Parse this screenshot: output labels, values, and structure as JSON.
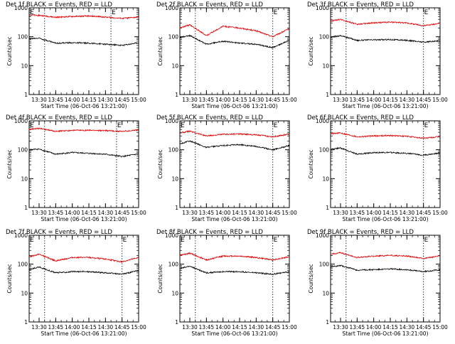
{
  "figure": {
    "colors": {
      "events": "#000000",
      "lld": "#dd0000",
      "axes": "#000000"
    },
    "marker_label": "E",
    "ylabel": "Counts/sec",
    "xlabel": "Start Time (06-Oct-06 13:21:00)"
  },
  "chart_data": [
    {
      "type": "line",
      "title": "Det 1f BLACK = Events, RED = LLD",
      "xlabel": "Start Time (06-Oct-06 13:21:00)",
      "ylabel": "Counts/sec",
      "yscale": "log",
      "ylim": [
        1,
        1000
      ],
      "xlim": [
        "13:21",
        "15:00"
      ],
      "x_ticks": [
        "13:30",
        "13:45",
        "14:00",
        "14:15",
        "14:30",
        "14:45",
        "15:00"
      ],
      "y_ticks": [
        "1",
        "10",
        "100",
        "1000"
      ],
      "marker_times": [
        "13:21",
        "14:35"
      ],
      "dotted_lines": [
        "13:35",
        "14:35"
      ],
      "series": [
        {
          "name": "Events",
          "color": "#000000",
          "x": [
            "13:21",
            "13:30",
            "13:45",
            "14:00",
            "14:15",
            "14:30",
            "14:45",
            "15:00"
          ],
          "values": [
            85,
            90,
            60,
            62,
            60,
            55,
            50,
            62
          ]
        },
        {
          "name": "LLD",
          "color": "#dd0000",
          "x": [
            "13:21",
            "13:30",
            "13:45",
            "14:00",
            "14:15",
            "14:30",
            "14:45",
            "15:00"
          ],
          "values": [
            560,
            550,
            470,
            500,
            520,
            480,
            430,
            480
          ]
        }
      ]
    },
    {
      "type": "line",
      "title": "Det 2f BLACK = Events, RED = LLD",
      "xlabel": "Start Time (06-Oct-06 13:21:00)",
      "ylabel": "Counts/sec",
      "yscale": "log",
      "ylim": [
        1,
        1000
      ],
      "xlim": [
        "13:21",
        "15:00"
      ],
      "x_ticks": [
        "13:30",
        "13:45",
        "14:00",
        "14:15",
        "14:30",
        "14:45",
        "15:00"
      ],
      "y_ticks": [
        "1",
        "10",
        "100",
        "1000"
      ],
      "marker_times": [
        "14:45"
      ],
      "dotted_lines": [
        "13:35",
        "14:45"
      ],
      "series": [
        {
          "name": "Events",
          "color": "#000000",
          "x": [
            "13:21",
            "13:30",
            "13:45",
            "14:00",
            "14:15",
            "14:30",
            "14:45",
            "15:00"
          ],
          "values": [
            95,
            110,
            55,
            70,
            60,
            55,
            42,
            75
          ]
        },
        {
          "name": "LLD",
          "color": "#dd0000",
          "x": [
            "13:21",
            "13:30",
            "13:45",
            "14:00",
            "14:15",
            "14:30",
            "14:45",
            "15:00"
          ],
          "values": [
            200,
            260,
            110,
            230,
            200,
            160,
            100,
            190
          ]
        }
      ]
    },
    {
      "type": "line",
      "title": "Det 3f BLACK = Events, RED = LLD",
      "xlabel": "Start Time (06-Oct-06 13:21:00)",
      "ylabel": "Counts/sec",
      "yscale": "log",
      "ylim": [
        1,
        1000
      ],
      "xlim": [
        "13:21",
        "15:00"
      ],
      "x_ticks": [
        "13:30",
        "13:45",
        "14:00",
        "14:15",
        "14:30",
        "14:45",
        "15:00"
      ],
      "y_ticks": [
        "1",
        "10",
        "100",
        "1000"
      ],
      "marker_times": [
        "14:45"
      ],
      "dotted_lines": [
        "13:35",
        "14:45"
      ],
      "series": [
        {
          "name": "Events",
          "color": "#000000",
          "x": [
            "13:21",
            "13:30",
            "13:45",
            "14:00",
            "14:15",
            "14:30",
            "14:45",
            "15:00"
          ],
          "values": [
            95,
            110,
            75,
            78,
            80,
            75,
            65,
            72
          ]
        },
        {
          "name": "LLD",
          "color": "#dd0000",
          "x": [
            "13:21",
            "13:30",
            "13:45",
            "14:00",
            "14:15",
            "14:30",
            "14:45",
            "15:00"
          ],
          "values": [
            350,
            400,
            270,
            300,
            320,
            300,
            240,
            290
          ]
        }
      ]
    },
    {
      "type": "line",
      "title": "Det 4f BLACK = Events, RED = LLD",
      "xlabel": "Start Time (06-Oct-06 13:21:00)",
      "ylabel": "Counts/sec",
      "yscale": "log",
      "ylim": [
        1,
        1000
      ],
      "xlim": [
        "13:21",
        "15:00"
      ],
      "x_ticks": [
        "13:30",
        "13:45",
        "14:00",
        "14:15",
        "14:30",
        "14:45",
        "15:00"
      ],
      "y_ticks": [
        "1",
        "10",
        "100",
        "1000"
      ],
      "marker_times": [
        "13:21",
        "14:40"
      ],
      "dotted_lines": [
        "13:35",
        "14:40"
      ],
      "series": [
        {
          "name": "Events",
          "color": "#000000",
          "x": [
            "13:21",
            "13:30",
            "13:45",
            "14:00",
            "14:15",
            "14:30",
            "14:45",
            "15:00"
          ],
          "values": [
            100,
            105,
            70,
            80,
            75,
            70,
            58,
            72
          ]
        },
        {
          "name": "LLD",
          "color": "#dd0000",
          "x": [
            "13:21",
            "13:30",
            "13:45",
            "14:00",
            "14:15",
            "14:30",
            "14:45",
            "15:00"
          ],
          "values": [
            500,
            550,
            430,
            470,
            470,
            460,
            430,
            480
          ]
        }
      ]
    },
    {
      "type": "line",
      "title": "Det 5f BLACK = Events, RED = LLD",
      "xlabel": "Start Time (06-Oct-06 13:21:00)",
      "ylabel": "Counts/sec",
      "yscale": "log",
      "ylim": [
        1,
        1000
      ],
      "xlim": [
        "13:21",
        "15:00"
      ],
      "x_ticks": [
        "13:30",
        "13:45",
        "14:00",
        "14:15",
        "14:30",
        "14:45",
        "15:00"
      ],
      "y_ticks": [
        "1",
        "10",
        "100",
        "1000"
      ],
      "marker_times": [
        "13:21",
        "14:45"
      ],
      "dotted_lines": [
        "13:35",
        "14:45"
      ],
      "series": [
        {
          "name": "Events",
          "color": "#000000",
          "x": [
            "13:21",
            "13:30",
            "13:45",
            "14:00",
            "14:15",
            "14:30",
            "14:45",
            "15:00"
          ],
          "values": [
            160,
            200,
            120,
            140,
            150,
            130,
            100,
            140
          ]
        },
        {
          "name": "LLD",
          "color": "#dd0000",
          "x": [
            "13:21",
            "13:30",
            "13:45",
            "14:00",
            "14:15",
            "14:30",
            "14:45",
            "15:00"
          ],
          "values": [
            380,
            440,
            300,
            340,
            350,
            330,
            280,
            350
          ]
        }
      ]
    },
    {
      "type": "line",
      "title": "Det 6f BLACK = Events, RED = LLD",
      "xlabel": "Start Time (06-Oct-06 13:21:00)",
      "ylabel": "Counts/sec",
      "yscale": "log",
      "ylim": [
        1,
        1000
      ],
      "xlim": [
        "13:21",
        "15:00"
      ],
      "x_ticks": [
        "13:30",
        "13:45",
        "14:00",
        "14:15",
        "14:30",
        "14:45",
        "15:00"
      ],
      "y_ticks": [
        "1",
        "10",
        "100",
        "1000"
      ],
      "marker_times": [
        "14:45"
      ],
      "dotted_lines": [
        "13:35",
        "14:45"
      ],
      "series": [
        {
          "name": "Events",
          "color": "#000000",
          "x": [
            "13:21",
            "13:30",
            "13:45",
            "14:00",
            "14:15",
            "14:30",
            "14:45",
            "15:00"
          ],
          "values": [
            105,
            115,
            70,
            80,
            80,
            75,
            65,
            78
          ]
        },
        {
          "name": "LLD",
          "color": "#dd0000",
          "x": [
            "13:21",
            "13:30",
            "13:45",
            "14:00",
            "14:15",
            "14:30",
            "14:45",
            "15:00"
          ],
          "values": [
            360,
            380,
            280,
            300,
            310,
            290,
            250,
            280
          ]
        }
      ]
    },
    {
      "type": "line",
      "title": "Det 7f BLACK = Events, RED = LLD",
      "xlabel": "Start Time (06-Oct-06 13:21:00)",
      "ylabel": "Counts/sec",
      "yscale": "log",
      "ylim": [
        1,
        1000
      ],
      "xlim": [
        "13:21",
        "15:00"
      ],
      "x_ticks": [
        "13:30",
        "13:45",
        "14:00",
        "14:15",
        "14:30",
        "14:45",
        "15:00"
      ],
      "y_ticks": [
        "1",
        "10",
        "100",
        "1000"
      ],
      "marker_times": [
        "13:21",
        "14:45"
      ],
      "dotted_lines": [
        "13:35",
        "14:45"
      ],
      "series": [
        {
          "name": "Events",
          "color": "#000000",
          "x": [
            "13:21",
            "13:30",
            "13:45",
            "14:00",
            "14:15",
            "14:30",
            "14:45",
            "15:00"
          ],
          "values": [
            65,
            80,
            50,
            55,
            55,
            50,
            45,
            60
          ]
        },
        {
          "name": "LLD",
          "color": "#dd0000",
          "x": [
            "13:21",
            "13:30",
            "13:45",
            "14:00",
            "14:15",
            "14:30",
            "14:45",
            "15:00"
          ],
          "values": [
            180,
            220,
            130,
            170,
            170,
            150,
            120,
            170
          ]
        }
      ]
    },
    {
      "type": "line",
      "title": "Det 8f BLACK = Events, RED = LLD",
      "xlabel": "Start Time (06-Oct-06 13:21:00)",
      "ylabel": "Counts/sec",
      "yscale": "log",
      "ylim": [
        1,
        1000
      ],
      "xlim": [
        "13:21",
        "15:00"
      ],
      "x_ticks": [
        "13:30",
        "13:45",
        "14:00",
        "14:15",
        "14:30",
        "14:45",
        "15:00"
      ],
      "y_ticks": [
        "1",
        "10",
        "100",
        "1000"
      ],
      "marker_times": [
        "13:21",
        "14:45"
      ],
      "dotted_lines": [
        "13:35",
        "14:45"
      ],
      "series": [
        {
          "name": "Events",
          "color": "#000000",
          "x": [
            "13:21",
            "13:30",
            "13:45",
            "14:00",
            "14:15",
            "14:30",
            "14:45",
            "15:00"
          ],
          "values": [
            70,
            85,
            50,
            55,
            55,
            50,
            45,
            55
          ]
        },
        {
          "name": "LLD",
          "color": "#dd0000",
          "x": [
            "13:21",
            "13:30",
            "13:45",
            "14:00",
            "14:15",
            "14:30",
            "14:45",
            "15:00"
          ],
          "values": [
            200,
            240,
            140,
            190,
            190,
            170,
            140,
            180
          ]
        }
      ]
    },
    {
      "type": "line",
      "title": "Det 9f BLACK = Events, RED = LLD",
      "xlabel": "Start Time (06-Oct-06 13:21:00)",
      "ylabel": "Counts/sec",
      "yscale": "log",
      "ylim": [
        1,
        1000
      ],
      "xlim": [
        "13:21",
        "15:00"
      ],
      "x_ticks": [
        "13:30",
        "13:45",
        "14:00",
        "14:15",
        "14:30",
        "14:45",
        "15:00"
      ],
      "y_ticks": [
        "1",
        "10",
        "100",
        "1000"
      ],
      "marker_times": [
        "14:45"
      ],
      "dotted_lines": [
        "13:35",
        "14:45"
      ],
      "series": [
        {
          "name": "Events",
          "color": "#000000",
          "x": [
            "13:21",
            "13:30",
            "13:45",
            "14:00",
            "14:15",
            "14:30",
            "14:45",
            "15:00"
          ],
          "values": [
            80,
            90,
            62,
            65,
            68,
            65,
            55,
            65
          ]
        },
        {
          "name": "LLD",
          "color": "#dd0000",
          "x": [
            "13:21",
            "13:30",
            "13:45",
            "14:00",
            "14:15",
            "14:30",
            "14:45",
            "15:00"
          ],
          "values": [
            220,
            250,
            170,
            190,
            200,
            190,
            160,
            190
          ]
        }
      ]
    }
  ]
}
